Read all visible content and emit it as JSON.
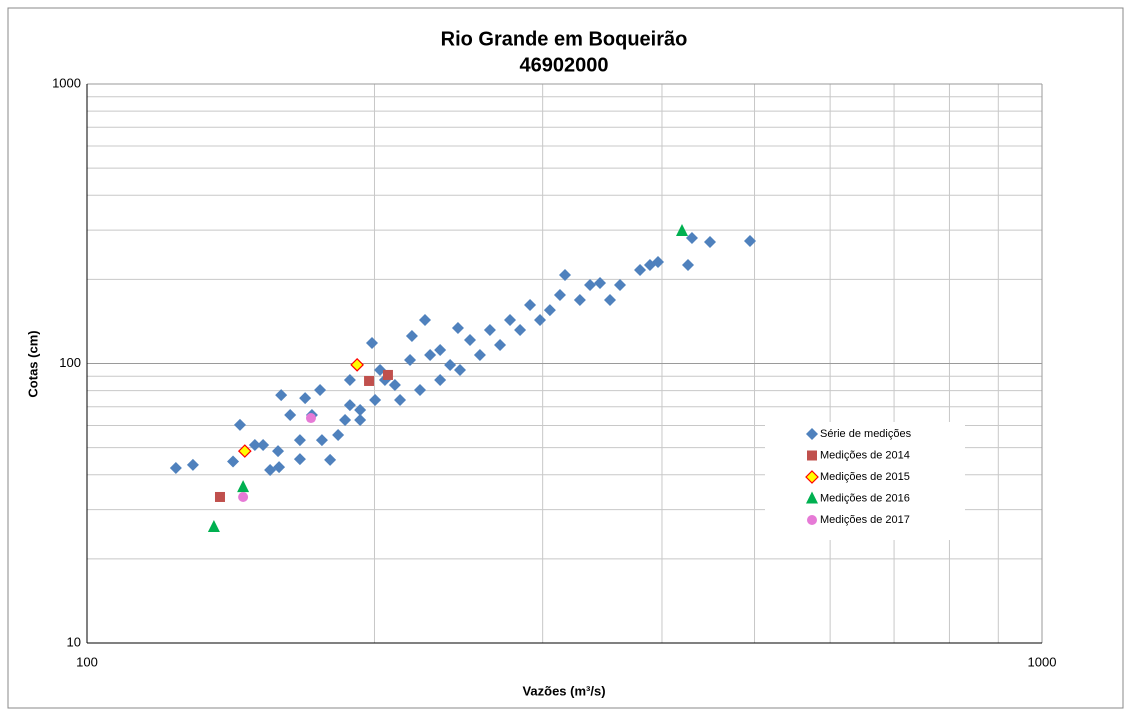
{
  "chart_data": {
    "type": "scatter",
    "title": "Rio Grande em Boqueirão",
    "subtitle": "46902000",
    "x_label": "Vazões (m³/s)",
    "y_label": "Cotas (cm)",
    "xlim": [
      100,
      1000
    ],
    "ylim": [
      10,
      1000
    ],
    "xticks": [
      100,
      1000
    ],
    "yticks": [
      10,
      100,
      1000
    ],
    "xscale": "log",
    "yscale": "log",
    "grid": true,
    "minor_grid": true,
    "legend": "lower right",
    "series": [
      {
        "name": "Série de medições",
        "color": "#4f81bd",
        "marker": "diamond",
        "x": [
          123.9,
          129.1,
          142.2,
          144.6,
          152.9,
          158.5,
          158.9,
          159.7,
          169.2,
          167.1,
          172.0,
          176.2,
          179.7,
          183.2,
          186.3,
          188.5,
          193.2,
          198.8,
          200.3,
          205.1,
          210.1,
          217.9,
          218.9,
          228.7,
          234.3,
          244.6,
          251.8,
          264.2,
          277.3,
          291.0,
          305.3,
          312.8,
          328.2,
          344.5,
          361.5,
          379.4,
          396.2,
          425.9,
          430.0,
          449.1,
          494.6,
          245.8,
          270.7,
          284.1,
          234.3,
          223.2,
          212.7,
          193.2,
          167.1,
          155.5,
          225.9,
          316.6,
          352.9,
          257.9,
          298.1,
          175.4,
          163.2,
          188.5,
          240.0,
          336.3,
          388.6,
          202.7,
          149.9
        ],
        "values": [
          42.3,
          43.4,
          44.6,
          60.3,
          51.1,
          48.6,
          42.6,
          77.1,
          75.2,
          45.5,
          65.4,
          53.2,
          45.2,
          55.5,
          62.8,
          71.0,
          62.8,
          118.4,
          74.0,
          87.3,
          83.8,
          102.9,
          125.4,
          107.3,
          111.8,
          134.0,
          121.4,
          131.8,
          143.1,
          161.9,
          155.3,
          175.8,
          168.7,
          194.1,
          191.0,
          216.0,
          230.7,
          225.1,
          281.2,
          272.1,
          274.4,
          94.8,
          116.5,
          131.8,
          87.3,
          80.4,
          74.0,
          68.2,
          53.2,
          41.6,
          143.1,
          207.3,
          168.7,
          107.3,
          143.1,
          80.4,
          65.4,
          87.3,
          98.8,
          191.0,
          225.1,
          94.8,
          51.1
        ]
      },
      {
        "name": "Medições de 2014",
        "color": "#c0504d",
        "marker": "square",
        "x": [
          137.8,
          197.4,
          206.6
        ],
        "values": [
          33.3,
          86.6,
          91.0
        ]
      },
      {
        "name": "Medições de 2015",
        "color": "#ff0000",
        "fill": "#ffff00",
        "marker": "diamond",
        "x": [
          146.3,
          191.8
        ],
        "values": [
          48.6,
          98.9
        ]
      },
      {
        "name": "Medições de 2016",
        "color": "#00b050",
        "marker": "triangle",
        "x": [
          135.8,
          145.7,
          419.8
        ],
        "values": [
          26.0,
          36.1,
          297.8
        ]
      },
      {
        "name": "Medições de 2017",
        "color": "#e67ad6",
        "marker": "circle",
        "x": [
          145.7,
          171.6
        ],
        "values": [
          33.3,
          63.8
        ]
      }
    ]
  }
}
